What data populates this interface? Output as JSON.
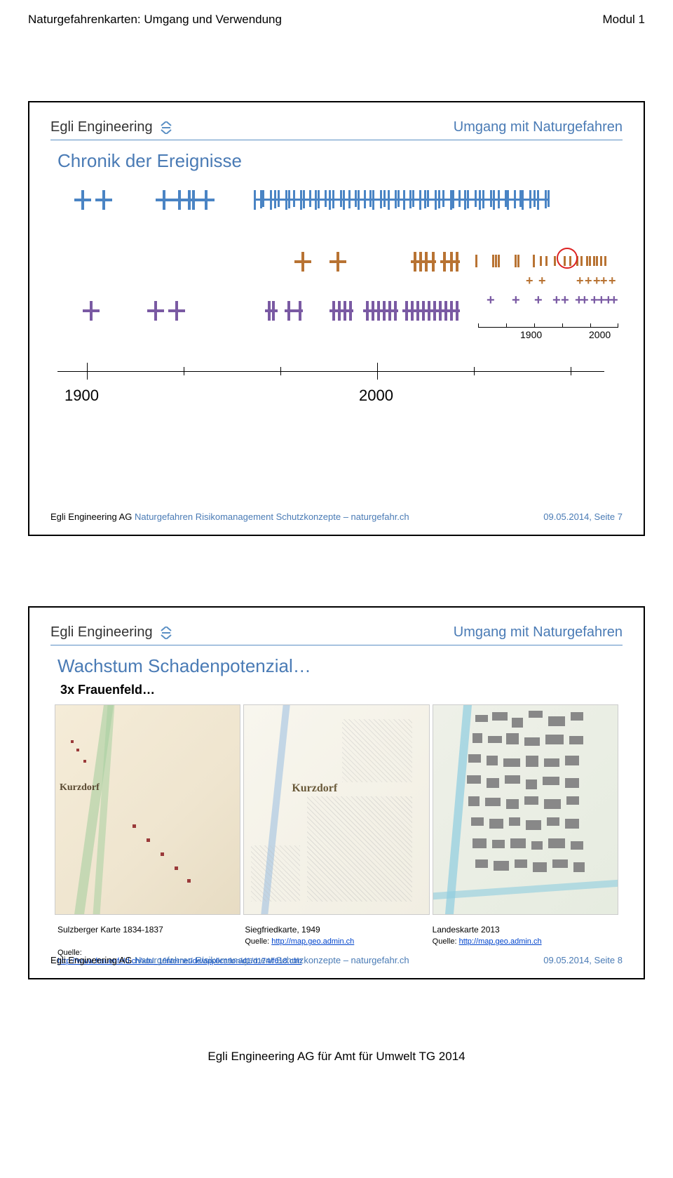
{
  "pageHeader": {
    "left": "Naturgefahrenkarten: Umgang und Verwendung",
    "right": "Modul 1"
  },
  "brand": "Egli Engineering",
  "slideTopTitle": "Umgang mit Naturgefahren",
  "slide1": {
    "title": "Chronik der Ereignisse",
    "colors": {
      "row1": "#4a84c4",
      "row2": "#b87333",
      "row3": "#7a5aa3",
      "circle": "#d22222"
    },
    "axisMain": {
      "start": "1900",
      "end": "2000"
    },
    "axisInset": {
      "start": "1900",
      "end": "2000"
    },
    "footerCompany": "Egli Engineering AG",
    "footerBlue": " Naturgefahren Risikomanagement Schutzkonzepte – naturgefahr.ch",
    "footerDate": "09.05.2014, Seite 7"
  },
  "slide2": {
    "title": "Wachstum Schadenpotenzial…",
    "subtitle": "3x Frauenfeld…",
    "mapLabels": {
      "kurzdorf": "Kurzdorf"
    },
    "captions": {
      "c1": "Sulzberger Karte 1834-1837",
      "c2": "Siegfriedkarte, 1949",
      "c3": "Landeskarte 2013"
    },
    "source2": {
      "prefix": "Quelle: ",
      "link": "http://map.geo.admin.ch"
    },
    "source3": {
      "prefix": "Quelle: ",
      "link": "http://map.geo.admin.ch"
    },
    "source1": {
      "prefix": "Quelle:",
      "link": "http://www.frauenfeld.ch/xml_1/internet/de/application/d1/d174/f618.cfm"
    },
    "footerCompany": "Egli Engineering AG",
    "footerBlue": " Naturgefahren Risikomanagement Schutzkonzepte – naturgefahr.ch",
    "footerDate": "09.05.2014, Seite 8"
  },
  "pageFooter": "Egli Engineering AG für Amt für Umwelt TG 2014"
}
